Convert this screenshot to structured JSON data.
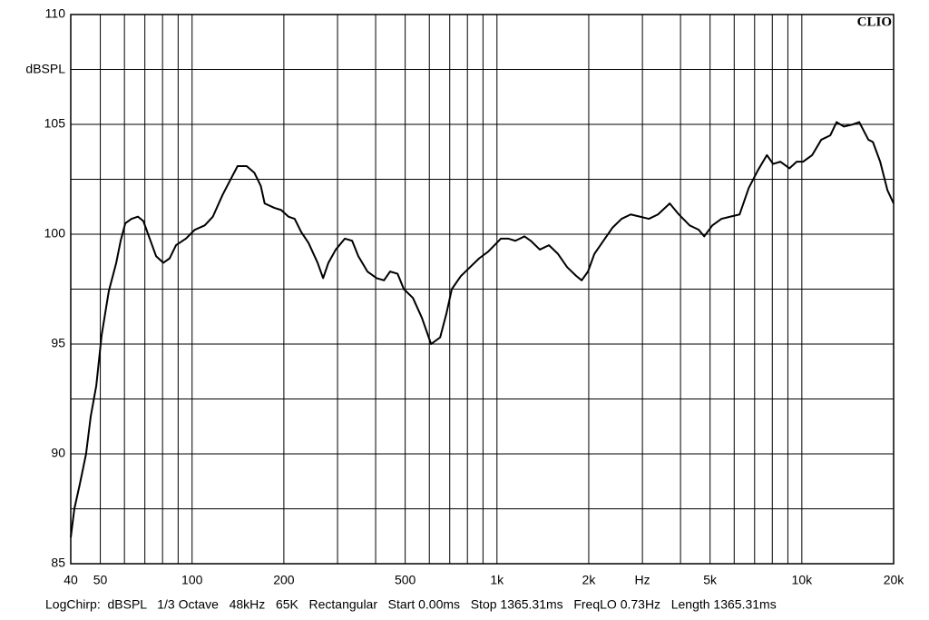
{
  "chart_data": {
    "type": "line",
    "brand": "CLIO",
    "ylabel": "dBSPL",
    "footer": "LogChirp:  dBSPL   1/3 Octave   48kHz   65K   Rectangular   Start 0.00ms   Stop 1365.31ms   FreqLO 0.73Hz   Length 1365.31ms",
    "xscale": "log",
    "grid": true,
    "color": "#000000",
    "xlim": [
      40,
      20000
    ],
    "ylim": [
      85,
      110
    ],
    "xticks": [
      40,
      50,
      100,
      200,
      500,
      {
        "value": 1000,
        "label": "1k"
      },
      {
        "value": 2000,
        "label": "2k"
      },
      {
        "value": 3000,
        "label": "Hz"
      },
      {
        "value": 5000,
        "label": "5k"
      },
      {
        "value": 10000,
        "label": "10k"
      },
      {
        "value": 20000,
        "label": "20k"
      }
    ],
    "x_minor_ticks": [
      60,
      70,
      80,
      90,
      300,
      400,
      600,
      700,
      800,
      900,
      4000,
      6000,
      7000,
      8000,
      9000
    ],
    "yticks": [
      85,
      90,
      95,
      100,
      105,
      110
    ],
    "y_minor_ticks": [
      87.5,
      92.5,
      97.5,
      102.5,
      107.5
    ],
    "x": [
      40,
      41.1,
      42.8,
      44.9,
      46.5,
      48.5,
      50.5,
      53.3,
      56.4,
      58.3,
      60.4,
      63.3,
      66.4,
      69.2,
      72.6,
      76.2,
      80.5,
      84.4,
      88.6,
      95.5,
      102,
      110,
      117,
      126,
      135,
      141,
      151,
      160,
      168,
      173,
      186,
      196,
      207,
      217,
      228,
      241,
      258,
      269,
      280,
      296,
      317,
      335,
      351,
      376,
      403,
      426,
      446,
      472,
      495,
      530,
      567,
      608,
      651,
      683,
      711,
      762,
      816,
      874,
      935,
      982,
      1030,
      1088,
      1149,
      1231,
      1291,
      1382,
      1481,
      1586,
      1699,
      1820,
      1896,
      1989,
      2086,
      2234,
      2394,
      2563,
      2746,
      2941,
      3150,
      3373,
      3687,
      3950,
      4286,
      4590,
      4784,
      5087,
      5449,
      5836,
      6250,
      6695,
      7170,
      7680,
      8050,
      8507,
      9110,
      9620,
      10090,
      10810,
      11580,
      12400,
      13000,
      13740,
      14720,
      15430,
      16530,
      17100,
      18070,
      19090,
      20000
    ],
    "values": [
      86.2,
      87.5,
      88.6,
      90.0,
      91.7,
      93.1,
      95.4,
      97.4,
      98.7,
      99.7,
      100.5,
      100.7,
      100.8,
      100.6,
      99.8,
      99.0,
      98.7,
      98.9,
      99.5,
      99.8,
      100.2,
      100.4,
      100.8,
      101.8,
      102.6,
      103.1,
      103.1,
      102.8,
      102.2,
      101.4,
      101.2,
      101.1,
      100.8,
      100.7,
      100.1,
      99.6,
      98.7,
      98.0,
      98.7,
      99.3,
      99.8,
      99.7,
      99.0,
      98.3,
      98.0,
      97.9,
      98.3,
      98.2,
      97.5,
      97.1,
      96.2,
      95.0,
      95.3,
      96.4,
      97.5,
      98.1,
      98.5,
      98.9,
      99.2,
      99.5,
      99.8,
      99.8,
      99.7,
      99.9,
      99.7,
      99.3,
      99.5,
      99.1,
      98.5,
      98.1,
      97.9,
      98.3,
      99.1,
      99.7,
      100.3,
      100.7,
      100.9,
      100.8,
      100.7,
      100.9,
      101.4,
      100.9,
      100.4,
      100.2,
      99.9,
      100.4,
      100.7,
      100.8,
      100.9,
      102.1,
      102.9,
      103.6,
      103.2,
      103.3,
      103.0,
      103.3,
      103.3,
      103.6,
      104.3,
      104.5,
      105.1,
      104.9,
      105.0,
      105.1,
      104.3,
      104.2,
      103.3,
      102.0,
      101.4
    ]
  }
}
